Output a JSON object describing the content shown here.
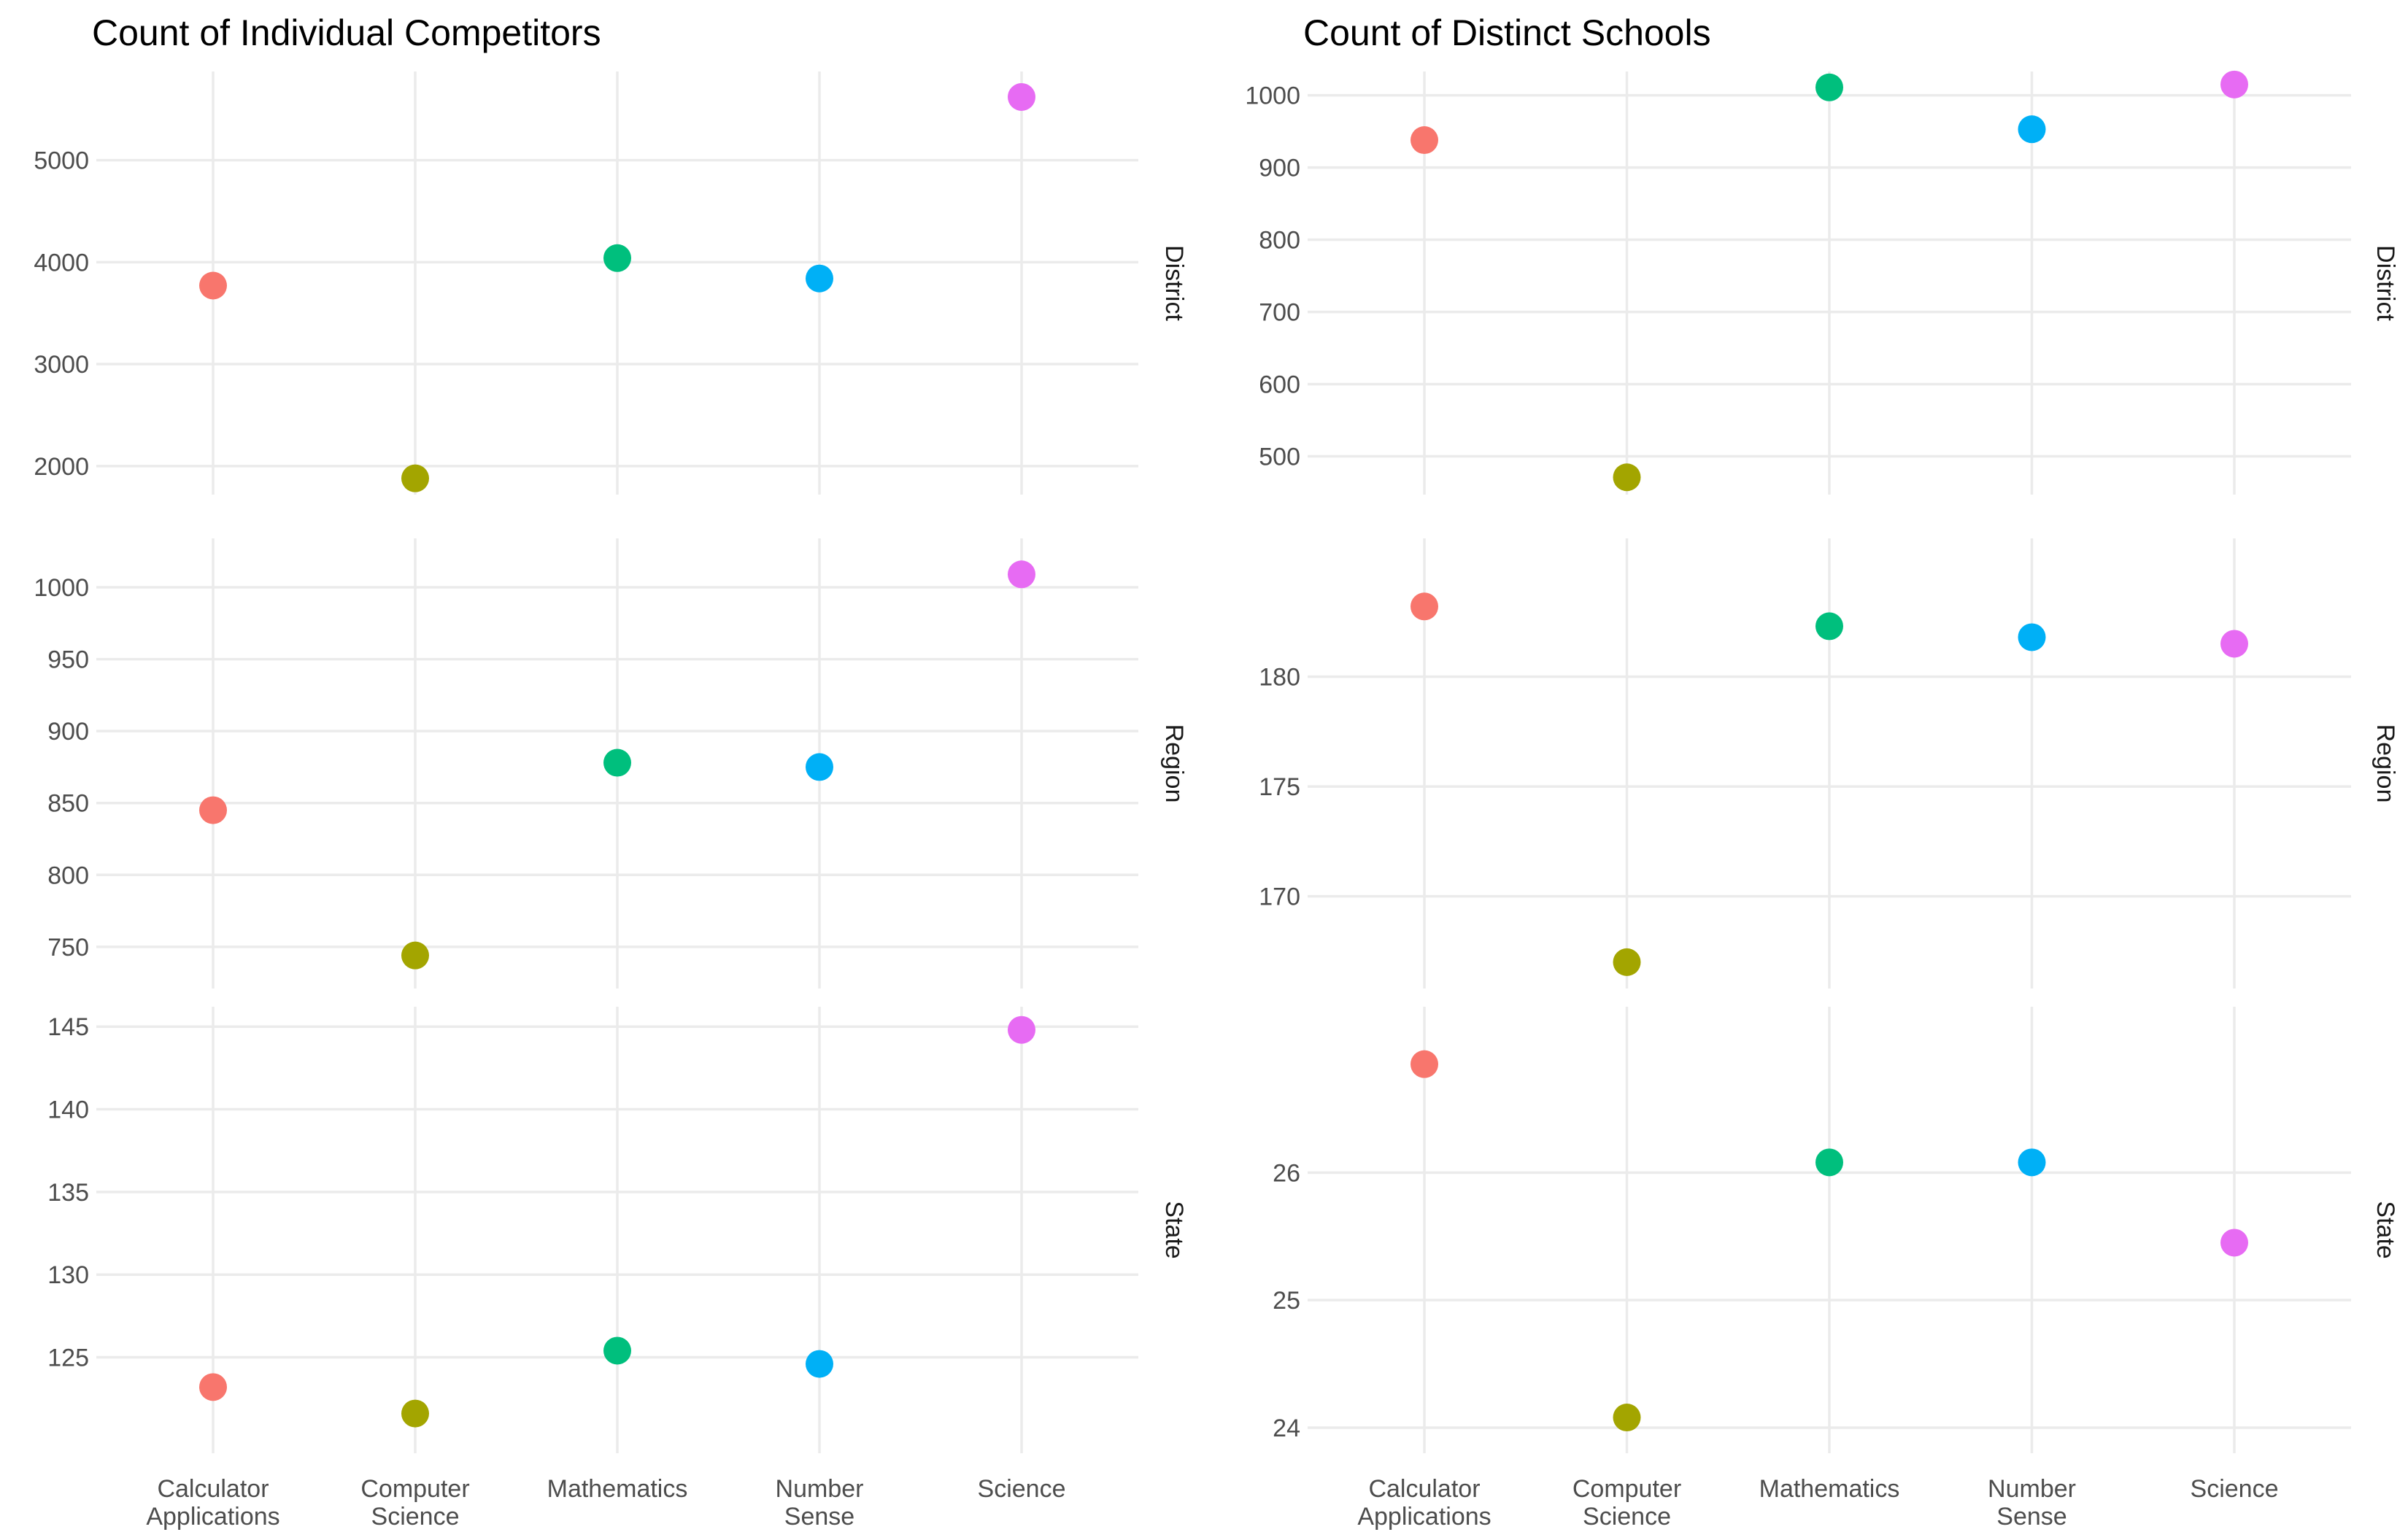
{
  "chart_data": [
    {
      "type": "scatter",
      "title": "Count of Individual Competitors",
      "xlabel": "",
      "ylabel": "",
      "categories": [
        "Calculator\nApplications",
        "Computer\nScience",
        "Mathematics",
        "Number\nSense",
        "Science"
      ],
      "colors": [
        "#F8766D",
        "#A3A500",
        "#00BF7D",
        "#00B0F6",
        "#E76BF3"
      ],
      "grid": true,
      "facets": [
        {
          "label": "District",
          "ylim": [
            1720,
            5870
          ],
          "yticks": [
            2000,
            3000,
            4000,
            5000
          ],
          "values": [
            3770,
            1880,
            4040,
            3840,
            5620
          ]
        },
        {
          "label": "Region",
          "ylim": [
            721,
            1034
          ],
          "yticks": [
            750,
            800,
            850,
            900,
            950,
            1000
          ],
          "values": [
            845,
            744,
            878,
            875,
            1009
          ]
        },
        {
          "label": "State",
          "ylim": [
            119.2,
            146.2
          ],
          "yticks": [
            125,
            130,
            135,
            140,
            145
          ],
          "values": [
            123.2,
            121.6,
            125.4,
            124.6,
            144.8
          ]
        }
      ]
    },
    {
      "type": "scatter",
      "title": "Count of Distinct Schools",
      "xlabel": "",
      "ylabel": "",
      "categories": [
        "Calculator\nApplications",
        "Computer\nScience",
        "Mathematics",
        "Number\nSense",
        "Science"
      ],
      "colors": [
        "#F8766D",
        "#A3A500",
        "#00BF7D",
        "#00B0F6",
        "#E76BF3"
      ],
      "grid": true,
      "facets": [
        {
          "label": "District",
          "ylim": [
            447,
            1033
          ],
          "yticks": [
            500,
            600,
            700,
            800,
            900,
            1000
          ],
          "values": [
            938,
            471,
            1011,
            953,
            1015
          ]
        },
        {
          "label": "Region",
          "ylim": [
            165.8,
            186.3
          ],
          "yticks": [
            170,
            175,
            180
          ],
          "values": [
            183.2,
            167.0,
            182.3,
            181.8,
            181.5
          ]
        },
        {
          "label": "State",
          "ylim": [
            23.8,
            27.3
          ],
          "yticks": [
            24,
            25,
            26
          ],
          "values": [
            26.85,
            24.08,
            26.08,
            26.08,
            25.45
          ]
        }
      ]
    }
  ]
}
